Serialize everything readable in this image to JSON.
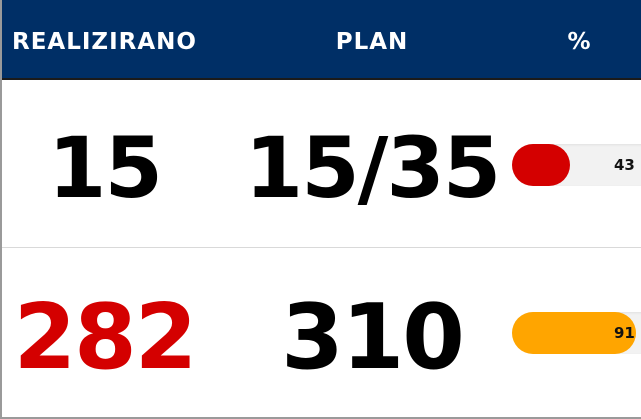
{
  "header": {
    "col_realized": "REALIZIRANO",
    "col_plan": "PLAN",
    "col_percent": "%"
  },
  "rows": [
    {
      "realized": "15",
      "plan": "15/35",
      "percent_label": "43",
      "percent_value": 43,
      "bar_color": "#d40000",
      "realized_color": "#000000"
    },
    {
      "realized": "282",
      "plan": "310",
      "percent_label": "91",
      "percent_value": 91,
      "bar_color": "#ffa500",
      "realized_color": "#d40000"
    }
  ],
  "colors": {
    "header_bg": "#002f66",
    "header_text": "#ffffff",
    "track": "#f2f2f2"
  }
}
